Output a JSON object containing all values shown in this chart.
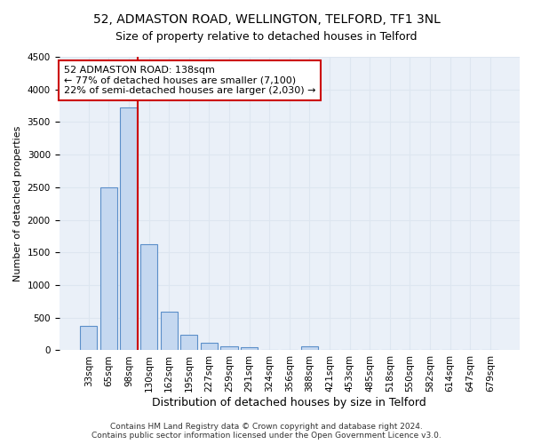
{
  "title1": "52, ADMASTON ROAD, WELLINGTON, TELFORD, TF1 3NL",
  "title2": "Size of property relative to detached houses in Telford",
  "xlabel": "Distribution of detached houses by size in Telford",
  "ylabel": "Number of detached properties",
  "categories": [
    "33sqm",
    "65sqm",
    "98sqm",
    "130sqm",
    "162sqm",
    "195sqm",
    "227sqm",
    "259sqm",
    "291sqm",
    "324sqm",
    "356sqm",
    "388sqm",
    "421sqm",
    "453sqm",
    "485sqm",
    "518sqm",
    "550sqm",
    "582sqm",
    "614sqm",
    "647sqm",
    "679sqm"
  ],
  "values": [
    375,
    2500,
    3725,
    1625,
    590,
    235,
    110,
    60,
    45,
    0,
    0,
    60,
    0,
    0,
    0,
    0,
    0,
    0,
    0,
    0,
    0
  ],
  "bar_color": "#c5d8f0",
  "bar_edge_color": "#5b8fc9",
  "annotation_text": "52 ADMASTON ROAD: 138sqm\n← 77% of detached houses are smaller (7,100)\n22% of semi-detached houses are larger (2,030) →",
  "annotation_box_color": "white",
  "annotation_box_edge_color": "#cc0000",
  "vline_color": "#cc0000",
  "grid_color": "#dde6f0",
  "background_color": "#eaf0f8",
  "footer": "Contains HM Land Registry data © Crown copyright and database right 2024.\nContains public sector information licensed under the Open Government Licence v3.0.",
  "ylim": [
    0,
    4500
  ],
  "title1_fontsize": 10,
  "title2_fontsize": 9,
  "xlabel_fontsize": 9,
  "ylabel_fontsize": 8,
  "tick_fontsize": 7.5,
  "footer_fontsize": 6.5
}
